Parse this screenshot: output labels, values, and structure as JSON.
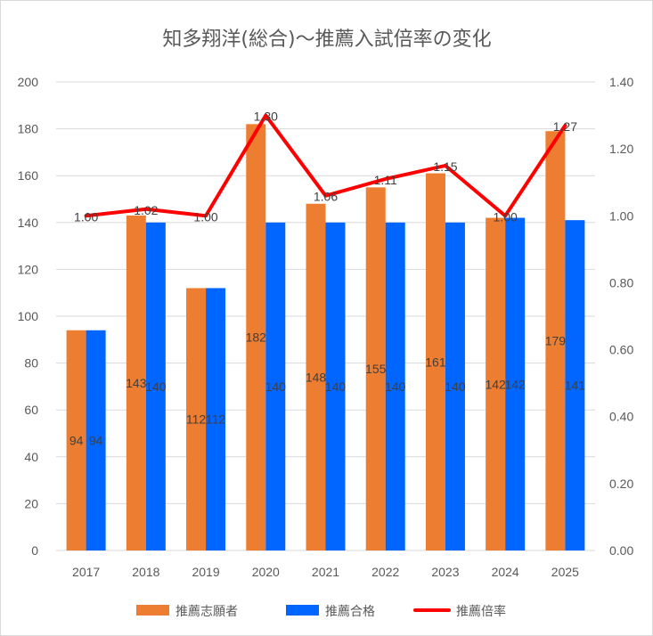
{
  "chart_data": {
    "type": "bar",
    "title": "知多翔洋(総合)～推薦入試倍率の変化",
    "categories": [
      "2017",
      "2018",
      "2019",
      "2020",
      "2021",
      "2022",
      "2023",
      "2024",
      "2025"
    ],
    "series": [
      {
        "name": "推薦志願者",
        "type": "bar",
        "axis": "left",
        "color": "#ED7D31",
        "values": [
          94,
          143,
          112,
          182,
          148,
          155,
          161,
          142,
          179
        ],
        "labels": [
          "94",
          "143",
          "112",
          "182",
          "148",
          "155",
          "161",
          "142",
          "179"
        ]
      },
      {
        "name": "推薦合格",
        "type": "bar",
        "axis": "left",
        "color": "#0066FF",
        "values": [
          94,
          140,
          112,
          140,
          140,
          140,
          140,
          142,
          141
        ],
        "labels": [
          "94",
          "140",
          "112",
          "140",
          "140",
          "140",
          "140",
          "142",
          "141"
        ]
      },
      {
        "name": "推薦倍率",
        "type": "line",
        "axis": "right",
        "color": "#FF0000",
        "values": [
          1.0,
          1.02,
          1.0,
          1.3,
          1.06,
          1.11,
          1.15,
          1.0,
          1.27
        ],
        "labels": [
          "1.00",
          "1.02",
          "1.00",
          "1.30",
          "1.06",
          "1.11",
          "1.15",
          "1.00",
          "1.27"
        ]
      }
    ],
    "y_left": {
      "min": 0,
      "max": 200,
      "ticks": [
        "0",
        "20",
        "40",
        "60",
        "80",
        "100",
        "120",
        "140",
        "160",
        "180",
        "200"
      ]
    },
    "y_right": {
      "min": 0,
      "max": 1.4,
      "ticks": [
        "0.00",
        "0.20",
        "0.40",
        "0.60",
        "0.80",
        "1.00",
        "1.20",
        "1.40"
      ]
    },
    "grid": true,
    "legend_position": "bottom"
  }
}
